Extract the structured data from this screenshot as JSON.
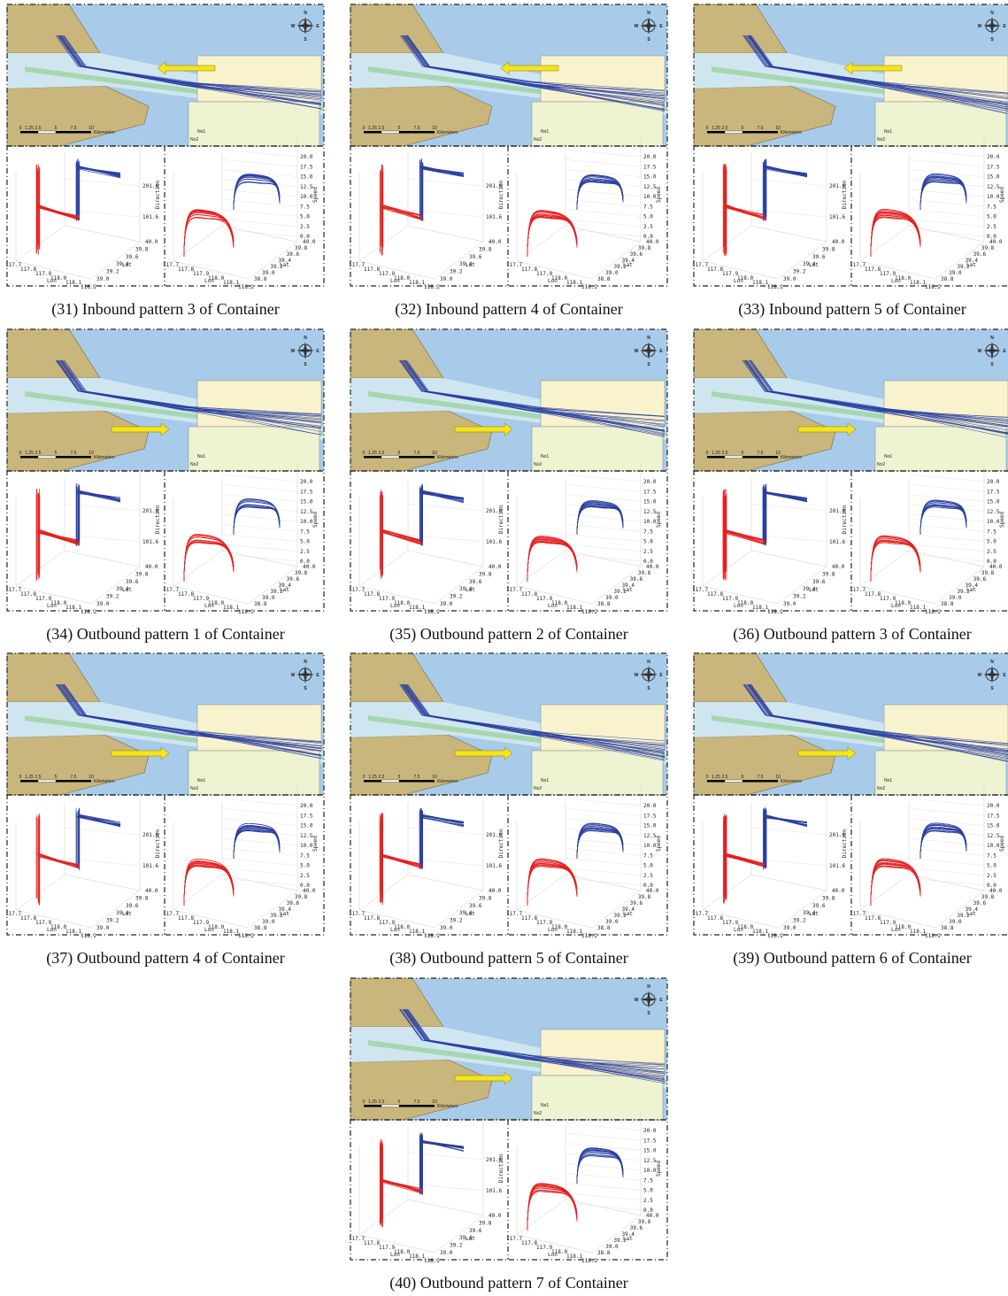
{
  "figure": {
    "map": {
      "compass": [
        "N",
        "E",
        "S",
        "W"
      ],
      "scale_ticks": [
        "0",
        "1.25",
        "2.5",
        "5",
        "7.5",
        "10"
      ],
      "scale_unit": "Kilometers",
      "markers": [
        "No1",
        "No2"
      ]
    },
    "direction_plot": {
      "z_label": "Direction",
      "z_ticks": [
        "201.6",
        "101.6"
      ],
      "lon_label": "Lon",
      "lon_ticks": [
        "117.7",
        "117.8",
        "117.9",
        "118.0",
        "118.1",
        "118.2"
      ],
      "lat_label": "Lat",
      "lat_ticks": [
        "39.0",
        "39.2",
        "39.4",
        "39.6",
        "39.8",
        "40.0"
      ]
    },
    "speed_plot": {
      "z_label": "Speed",
      "z_ticks": [
        "0.0",
        "2.5",
        "5.0",
        "7.5",
        "10.0",
        "12.5",
        "15.0",
        "17.5",
        "20.0"
      ],
      "lon_label": "Lon",
      "lon_ticks": [
        "117.7",
        "117.8",
        "117.9",
        "118.0",
        "118.1",
        "118.2"
      ],
      "lat_label": "Lat",
      "lat_ticks": [
        "38.8",
        "39.0",
        "39.2",
        "39.4",
        "39.6",
        "39.8",
        "40.0"
      ]
    },
    "panels": [
      {
        "caption": "(31) Inbound pattern 3 of Container",
        "direction": "inbound"
      },
      {
        "caption": "(32) Inbound pattern 4 of Container",
        "direction": "inbound"
      },
      {
        "caption": "(33) Inbound pattern 5 of Container",
        "direction": "inbound"
      },
      {
        "caption": "(34) Outbound pattern 1 of Container",
        "direction": "outbound"
      },
      {
        "caption": "(35) Outbound pattern 2 of Container",
        "direction": "outbound"
      },
      {
        "caption": "(36) Outbound pattern 3 of Container",
        "direction": "outbound"
      },
      {
        "caption": "(37) Outbound pattern 4 of Container",
        "direction": "outbound"
      },
      {
        "caption": "(38) Outbound pattern 5 of Container",
        "direction": "outbound"
      },
      {
        "caption": "(39) Outbound pattern 6 of Container",
        "direction": "outbound"
      },
      {
        "caption": "(40) Outbound pattern 7 of Container",
        "direction": "outbound"
      }
    ]
  }
}
